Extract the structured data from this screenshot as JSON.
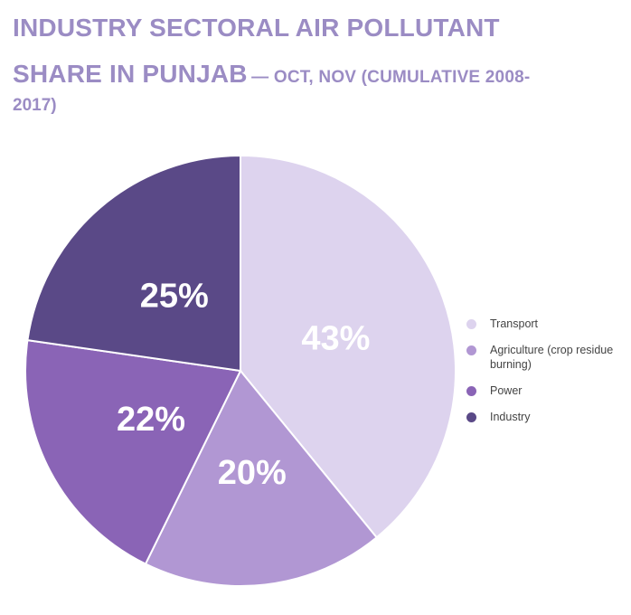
{
  "chart_data": {
    "type": "pie",
    "title": "INDUSTRY SECTORAL AIR POLLUTANT SHARE IN PUNJAB",
    "subtitle_line1": "— OCT, NOV (CUMULATIVE 2008-",
    "subtitle_line2": "2017)",
    "categories": [
      "Transport",
      "Agriculture (crop residue burning)",
      "Power",
      "Industry"
    ],
    "values": [
      43,
      20,
      22,
      25
    ],
    "labels": [
      "43%",
      "20%",
      "22%",
      "25%"
    ],
    "colors": [
      "#ddd3ee",
      "#b197d3",
      "#8a64b6",
      "#5a4987"
    ],
    "title_color": "#9b8cc4",
    "legend_position": "right"
  }
}
